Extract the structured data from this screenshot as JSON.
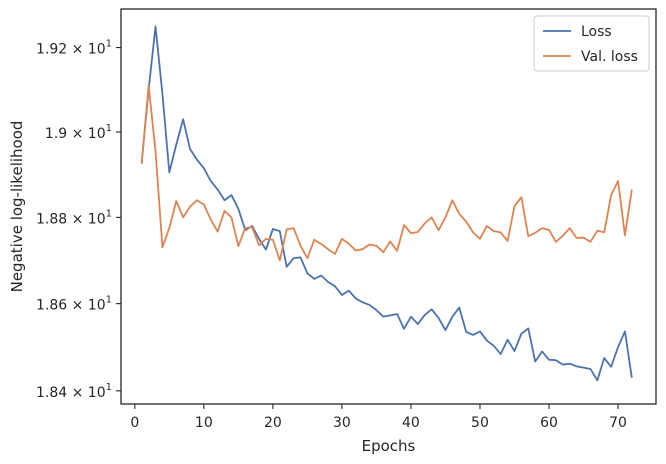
{
  "chart_data": {
    "type": "line",
    "xlabel": "Epochs",
    "ylabel": "Negative log-likelihood",
    "xlim": [
      -2,
      75.5
    ],
    "ylim": [
      18.37,
      19.292
    ],
    "x_ticks": [
      0,
      10,
      20,
      30,
      40,
      50,
      60,
      70
    ],
    "y_ticks": [
      {
        "value": 18.4,
        "mantissa": "1.84",
        "exp": "1"
      },
      {
        "value": 18.6,
        "mantissa": "1.86",
        "exp": "1"
      },
      {
        "value": 18.8,
        "mantissa": "1.88",
        "exp": "1"
      },
      {
        "value": 19.0,
        "mantissa": "1.9",
        "exp": "1"
      },
      {
        "value": 19.2,
        "mantissa": "1.92",
        "exp": "1"
      }
    ],
    "y_scale": "log",
    "grid": false,
    "legend_position": "top-right",
    "series": [
      {
        "name": "Loss",
        "color": "#4c72b0",
        "x": [
          1,
          2,
          3,
          4,
          5,
          6,
          7,
          8,
          9,
          10,
          11,
          12,
          13,
          14,
          15,
          16,
          17,
          18,
          19,
          20,
          21,
          22,
          23,
          24,
          25,
          26,
          27,
          28,
          29,
          30,
          31,
          32,
          33,
          34,
          35,
          36,
          37,
          38,
          39,
          40,
          41,
          42,
          43,
          44,
          45,
          46,
          47,
          48,
          49,
          50,
          51,
          52,
          53,
          54,
          55,
          56,
          57,
          58,
          59,
          60,
          61,
          62,
          63,
          64,
          65,
          66,
          67,
          68,
          69,
          70,
          71,
          72
        ],
        "y": [
          18.93,
          19.1,
          19.25,
          19.09,
          18.905,
          18.97,
          19.03,
          18.96,
          18.935,
          18.915,
          18.885,
          18.865,
          18.84,
          18.852,
          18.82,
          18.77,
          18.78,
          18.75,
          18.725,
          18.773,
          18.768,
          18.685,
          18.705,
          18.707,
          18.67,
          18.657,
          18.665,
          18.65,
          18.64,
          18.62,
          18.63,
          18.612,
          18.603,
          18.597,
          18.585,
          18.57,
          18.573,
          18.576,
          18.542,
          18.57,
          18.553,
          18.574,
          18.587,
          18.567,
          18.539,
          18.57,
          18.591,
          18.535,
          18.528,
          18.536,
          18.515,
          18.503,
          18.484,
          18.517,
          18.491,
          18.531,
          18.543,
          18.467,
          18.49,
          18.471,
          18.47,
          18.46,
          18.462,
          18.456,
          18.453,
          18.45,
          18.424,
          18.475,
          18.455,
          18.5,
          18.536,
          18.43
        ]
      },
      {
        "name": "Val. loss",
        "color": "#dd8452",
        "x": [
          1,
          2,
          3,
          4,
          5,
          6,
          7,
          8,
          9,
          10,
          11,
          12,
          13,
          14,
          15,
          16,
          17,
          18,
          19,
          20,
          21,
          22,
          23,
          24,
          25,
          26,
          27,
          28,
          29,
          30,
          31,
          32,
          33,
          34,
          35,
          36,
          37,
          38,
          39,
          40,
          41,
          42,
          43,
          44,
          45,
          46,
          47,
          48,
          49,
          50,
          51,
          52,
          53,
          54,
          55,
          56,
          57,
          58,
          59,
          60,
          61,
          62,
          63,
          64,
          65,
          66,
          67,
          68,
          69,
          70,
          71,
          72
        ],
        "y": [
          18.925,
          19.11,
          18.955,
          18.73,
          18.775,
          18.838,
          18.8,
          18.825,
          18.84,
          18.83,
          18.795,
          18.767,
          18.815,
          18.8,
          18.733,
          18.775,
          18.777,
          18.735,
          18.75,
          18.748,
          18.7,
          18.772,
          18.775,
          18.734,
          18.705,
          18.748,
          18.738,
          18.726,
          18.715,
          18.75,
          18.739,
          18.723,
          18.726,
          18.737,
          18.734,
          18.719,
          18.744,
          18.722,
          18.782,
          18.763,
          18.766,
          18.786,
          18.8,
          18.77,
          18.8,
          18.84,
          18.808,
          18.79,
          18.765,
          18.75,
          18.78,
          18.768,
          18.765,
          18.745,
          18.826,
          18.847,
          18.756,
          18.764,
          18.775,
          18.771,
          18.743,
          18.757,
          18.775,
          18.752,
          18.753,
          18.743,
          18.769,
          18.765,
          18.852,
          18.885,
          18.758,
          18.865
        ]
      }
    ]
  }
}
